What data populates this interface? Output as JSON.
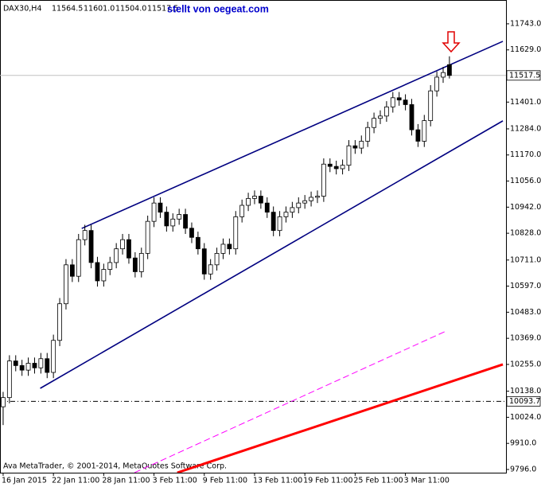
{
  "chart_data": {
    "type": "candlestick",
    "symbol": "DAX30,H4",
    "ohlc_labels": [
      "11564.5",
      "11601.0",
      "11504.0",
      "11517.5"
    ],
    "title": "stellt von oegeat.com",
    "footer": "Ava MetaTrader, © 2001-2014, MetaQuotes Software Corp.",
    "categories": [
      "16 Jan 2015",
      null,
      null,
      null,
      null,
      null,
      null,
      null,
      "22 Jan 11:00",
      null,
      null,
      null,
      null,
      null,
      null,
      null,
      "28 Jan 11:00",
      null,
      null,
      null,
      null,
      null,
      null,
      null,
      "3 Feb 11:00",
      null,
      null,
      null,
      null,
      null,
      null,
      null,
      "9 Feb 11:00",
      null,
      null,
      null,
      null,
      null,
      null,
      null,
      "13 Feb 11:00",
      null,
      null,
      null,
      null,
      null,
      null,
      null,
      "19 Feb 11:00",
      null,
      null,
      null,
      null,
      null,
      null,
      null,
      "25 Feb 11:00",
      null,
      null,
      null,
      null,
      null,
      null,
      null,
      "3 Mar 11:00",
      null,
      null,
      null,
      null,
      null,
      null,
      null
    ],
    "open": [
      10070,
      10110,
      10270,
      10250,
      10230,
      10260,
      10240,
      10280,
      10220,
      10360,
      10520,
      10690,
      10640,
      10800,
      10840,
      10700,
      10620,
      10670,
      10700,
      10760,
      10800,
      10720,
      10660,
      10740,
      10880,
      10960,
      10920,
      10860,
      10890,
      10910,
      10850,
      10810,
      10760,
      10650,
      10690,
      10740,
      10780,
      10760,
      10900,
      10950,
      10980,
      10990,
      10960,
      10920,
      10840,
      10900,
      10920,
      10940,
      10960,
      10970,
      10985,
      10990,
      11130,
      11120,
      11110,
      11125,
      11210,
      11200,
      11230,
      11290,
      11330,
      11340,
      11380,
      11420,
      11410,
      11390,
      11280,
      11230,
      11320,
      11450,
      11510,
      11564.5
    ],
    "high": [
      10135,
      10295,
      10295,
      10275,
      10285,
      10285,
      10305,
      10305,
      10385,
      10545,
      10715,
      10715,
      10825,
      10865,
      10865,
      10725,
      10695,
      10725,
      10785,
      10825,
      10825,
      10745,
      10765,
      10905,
      10985,
      10985,
      10945,
      10915,
      10935,
      10935,
      10875,
      10835,
      10785,
      10715,
      10765,
      10805,
      10805,
      10925,
      10975,
      11005,
      11015,
      11015,
      10985,
      10945,
      10925,
      10945,
      10965,
      10985,
      10995,
      11010,
      11015,
      11155,
      11155,
      11145,
      11150,
      11235,
      11235,
      11255,
      11315,
      11355,
      11365,
      11405,
      11445,
      11445,
      11435,
      11415,
      11305,
      11345,
      11475,
      11535,
      11555,
      11601
    ],
    "low": [
      9990,
      10085,
      10225,
      10205,
      10205,
      10215,
      10215,
      10195,
      10195,
      10335,
      10495,
      10615,
      10615,
      10775,
      10675,
      10595,
      10595,
      10645,
      10675,
      10735,
      10695,
      10635,
      10635,
      10715,
      10855,
      10895,
      10835,
      10835,
      10865,
      10825,
      10785,
      10735,
      10625,
      10625,
      10665,
      10715,
      10735,
      10735,
      10875,
      10925,
      10955,
      10935,
      10895,
      10815,
      10815,
      10875,
      10895,
      10915,
      10935,
      10945,
      10960,
      10965,
      11095,
      11085,
      11085,
      11100,
      11175,
      11175,
      11205,
      11265,
      11305,
      11315,
      11355,
      11385,
      11365,
      11255,
      11205,
      11205,
      11295,
      11425,
      11485,
      11504
    ],
    "close": [
      10110,
      10270,
      10250,
      10230,
      10260,
      10240,
      10280,
      10220,
      10360,
      10520,
      10690,
      10640,
      10800,
      10840,
      10700,
      10620,
      10670,
      10700,
      10760,
      10800,
      10720,
      10660,
      10740,
      10880,
      10960,
      10920,
      10860,
      10890,
      10910,
      10850,
      10810,
      10760,
      10650,
      10690,
      10740,
      10780,
      10760,
      10900,
      10950,
      10980,
      10990,
      10960,
      10920,
      10840,
      10900,
      10920,
      10940,
      10960,
      10970,
      10985,
      10990,
      11130,
      11120,
      11110,
      11125,
      11210,
      11200,
      11230,
      11290,
      11330,
      11340,
      11380,
      11420,
      11410,
      11390,
      11280,
      11230,
      11320,
      11450,
      11510,
      11530,
      11517.5
    ],
    "bull_color": "#ffffff",
    "bear_color": "#000000",
    "xlim": [
      -0.5,
      80
    ],
    "ylim": [
      9782,
      11847
    ],
    "yticks": [
      {
        "value": 11743,
        "label": "11743.0"
      },
      {
        "value": 11629,
        "label": "11629.0"
      },
      {
        "value": 11401,
        "label": "11401.0"
      },
      {
        "value": 11284,
        "label": "11284.0"
      },
      {
        "value": 11170,
        "label": "11170.0"
      },
      {
        "value": 11056,
        "label": "11056.0"
      },
      {
        "value": 10942,
        "label": "10942.0"
      },
      {
        "value": 10828,
        "label": "10828.0"
      },
      {
        "value": 10711,
        "label": "10711.0"
      },
      {
        "value": 10597,
        "label": "10597.0"
      },
      {
        "value": 10483,
        "label": "10483.0"
      },
      {
        "value": 10369,
        "label": "10369.0"
      },
      {
        "value": 10255,
        "label": "10255.0"
      },
      {
        "value": 10138,
        "label": "10138.0"
      },
      {
        "value": 10024,
        "label": "10024.0"
      },
      {
        "value": 9910,
        "label": "9910.0"
      },
      {
        "value": 9796,
        "label": "9796.0"
      }
    ],
    "price_line": {
      "value": 11517.5,
      "label": "11517.5",
      "color": "#c0c0c0"
    },
    "level_line": {
      "value": 10093.7,
      "label": "10093.7",
      "color": "#000000"
    },
    "trendlines": [
      {
        "x": [
          12.5,
          79.5
        ],
        "values": [
          10849,
          11666.5
        ],
        "color": "#000080",
        "width": 1.6,
        "dash": "none"
      },
      {
        "x": [
          5.9,
          79.5
        ],
        "values": [
          10150.5,
          11319
        ],
        "color": "#000080",
        "width": 1.6,
        "dash": "none"
      },
      {
        "x": [
          27.7,
          79.5
        ],
        "values": [
          9782,
          10255
        ],
        "color": "#ff0000",
        "width": 3,
        "dash": "none"
      },
      {
        "x": [
          20.9,
          70.5
        ],
        "values": [
          9782,
          10401
        ],
        "color": "#ff00ff",
        "width": 1,
        "dash": "8 4"
      }
    ]
  }
}
